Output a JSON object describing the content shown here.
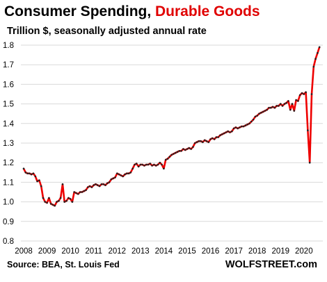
{
  "header": {
    "title_main": "Consumer Spending, ",
    "title_highlight": "Durable Goods",
    "subtitle": "Trillion $, seasonally adjusted annual rate"
  },
  "footer": {
    "source": "Source: BEA, St. Louis Fed",
    "brand": "WOLFSTREET.com"
  },
  "colors": {
    "highlight": "#e00000",
    "line": "#ee0000",
    "marker": "#222222",
    "grid": "#d9d9d9"
  },
  "chart_data": {
    "type": "line",
    "title": "Consumer Spending, Durable Goods",
    "subtitle": "Trillion $, seasonally adjusted annual rate",
    "xlabel": "",
    "ylabel": "",
    "xlim": [
      2008,
      2020.75
    ],
    "ylim": [
      0.8,
      1.8
    ],
    "yticks": [
      "0.8",
      "0.9",
      "1.0",
      "1.1",
      "1.2",
      "1.3",
      "1.4",
      "1.5",
      "1.6",
      "1.7",
      "1.8"
    ],
    "xticks": [
      "2008",
      "2009",
      "2010",
      "2011",
      "2012",
      "2013",
      "2014",
      "2015",
      "2016",
      "2017",
      "2018",
      "2019",
      "2020"
    ],
    "grid": "horizontal",
    "series": [
      {
        "x": [
          2008.0,
          2008.083,
          2008.167,
          2008.25,
          2008.333,
          2008.417,
          2008.5,
          2008.583,
          2008.667,
          2008.75,
          2008.833,
          2008.917,
          2009.0,
          2009.083,
          2009.167,
          2009.25,
          2009.333,
          2009.417,
          2009.5,
          2009.583,
          2009.667,
          2009.75,
          2009.833,
          2009.917,
          2010.0,
          2010.083,
          2010.167,
          2010.25,
          2010.333,
          2010.417,
          2010.5,
          2010.583,
          2010.667,
          2010.75,
          2010.833,
          2010.917,
          2011.0,
          2011.083,
          2011.167,
          2011.25,
          2011.333,
          2011.417,
          2011.5,
          2011.583,
          2011.667,
          2011.75,
          2011.833,
          2011.917,
          2012.0,
          2012.083,
          2012.167,
          2012.25,
          2012.333,
          2012.417,
          2012.5,
          2012.583,
          2012.667,
          2012.75,
          2012.833,
          2012.917,
          2013.0,
          2013.083,
          2013.167,
          2013.25,
          2013.333,
          2013.417,
          2013.5,
          2013.583,
          2013.667,
          2013.75,
          2013.833,
          2013.917,
          2014.0,
          2014.083,
          2014.167,
          2014.25,
          2014.333,
          2014.417,
          2014.5,
          2014.583,
          2014.667,
          2014.75,
          2014.833,
          2014.917,
          2015.0,
          2015.083,
          2015.167,
          2015.25,
          2015.333,
          2015.417,
          2015.5,
          2015.583,
          2015.667,
          2015.75,
          2015.833,
          2015.917,
          2016.0,
          2016.083,
          2016.167,
          2016.25,
          2016.333,
          2016.417,
          2016.5,
          2016.583,
          2016.667,
          2016.75,
          2016.833,
          2016.917,
          2017.0,
          2017.083,
          2017.167,
          2017.25,
          2017.333,
          2017.417,
          2017.5,
          2017.583,
          2017.667,
          2017.75,
          2017.833,
          2017.917,
          2018.0,
          2018.083,
          2018.167,
          2018.25,
          2018.333,
          2018.417,
          2018.5,
          2018.583,
          2018.667,
          2018.75,
          2018.833,
          2018.917,
          2019.0,
          2019.083,
          2019.167,
          2019.25,
          2019.333,
          2019.417,
          2019.5,
          2019.583,
          2019.667,
          2019.75,
          2019.833,
          2019.917,
          2020.0,
          2020.083,
          2020.167,
          2020.25,
          2020.333,
          2020.417,
          2020.5,
          2020.583,
          2020.667
        ],
        "y": [
          1.17,
          1.15,
          1.145,
          1.145,
          1.14,
          1.145,
          1.13,
          1.105,
          1.11,
          1.08,
          1.02,
          1.0,
          0.995,
          1.02,
          0.99,
          0.985,
          0.98,
          1.0,
          1.005,
          1.02,
          1.09,
          1.0,
          1.005,
          1.02,
          1.015,
          1.0,
          1.05,
          1.045,
          1.04,
          1.05,
          1.05,
          1.055,
          1.06,
          1.075,
          1.08,
          1.075,
          1.085,
          1.09,
          1.085,
          1.08,
          1.09,
          1.09,
          1.085,
          1.095,
          1.1,
          1.115,
          1.12,
          1.125,
          1.145,
          1.14,
          1.135,
          1.13,
          1.14,
          1.145,
          1.145,
          1.15,
          1.17,
          1.19,
          1.195,
          1.18,
          1.19,
          1.19,
          1.185,
          1.19,
          1.19,
          1.195,
          1.185,
          1.19,
          1.185,
          1.19,
          1.2,
          1.19,
          1.17,
          1.215,
          1.22,
          1.23,
          1.24,
          1.245,
          1.25,
          1.255,
          1.26,
          1.26,
          1.27,
          1.265,
          1.27,
          1.275,
          1.27,
          1.28,
          1.3,
          1.305,
          1.31,
          1.31,
          1.305,
          1.315,
          1.31,
          1.305,
          1.32,
          1.325,
          1.32,
          1.33,
          1.33,
          1.34,
          1.345,
          1.35,
          1.355,
          1.36,
          1.355,
          1.36,
          1.375,
          1.38,
          1.375,
          1.38,
          1.385,
          1.385,
          1.39,
          1.395,
          1.4,
          1.41,
          1.42,
          1.435,
          1.44,
          1.45,
          1.455,
          1.46,
          1.465,
          1.47,
          1.48,
          1.48,
          1.485,
          1.48,
          1.49,
          1.49,
          1.5,
          1.49,
          1.5,
          1.505,
          1.515,
          1.47,
          1.5,
          1.465,
          1.52,
          1.515,
          1.545,
          1.555,
          1.55,
          1.56,
          1.365,
          1.2,
          1.55,
          1.69,
          1.73,
          1.76,
          1.79
        ]
      }
    ]
  }
}
